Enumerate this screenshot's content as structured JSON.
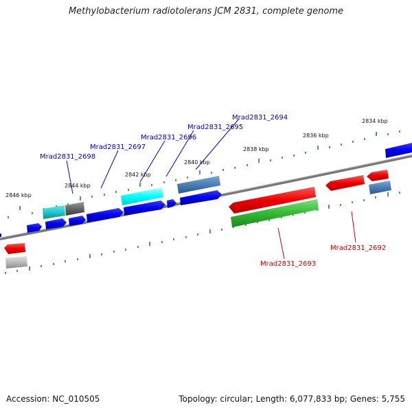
{
  "title": "Methylobacterium radiotolerans JCM 2831, complete genome",
  "accession": "Accession: NC_010505",
  "genome_info": "Topology: circular; Length: 6,077,833 bp; Genes: 5,755",
  "colors": {
    "blue": "#0000ee",
    "cyan": "#20c8d0",
    "bright_cyan": "#00ffff",
    "steel": "#4a7eb5",
    "gray": "#666666",
    "red": "#ee0000",
    "green": "#33bb33",
    "light_gray": "#bbbbbb",
    "tick": "#1a7a1a",
    "backbone": "#777777",
    "label_blue": "#0000cc",
    "label_red": "#cc0000"
  },
  "kbp_labels": [
    "2834 kbp",
    "2836 kbp",
    "2838 kbp",
    "2840 kbp",
    "2842 kbp",
    "2844 kbp",
    "2846 kbp"
  ],
  "gene_labels": {
    "mrad2694": "Mrad2831_2694",
    "mrad2695": "Mrad2831_2695",
    "mrad2696": "Mrad2831_2696",
    "mrad2697": "Mrad2831_2697",
    "mrad2698": "Mrad2831_2698",
    "mrad2693": "Mrad2831_2693",
    "mrad2692": "Mrad2831_2692"
  }
}
